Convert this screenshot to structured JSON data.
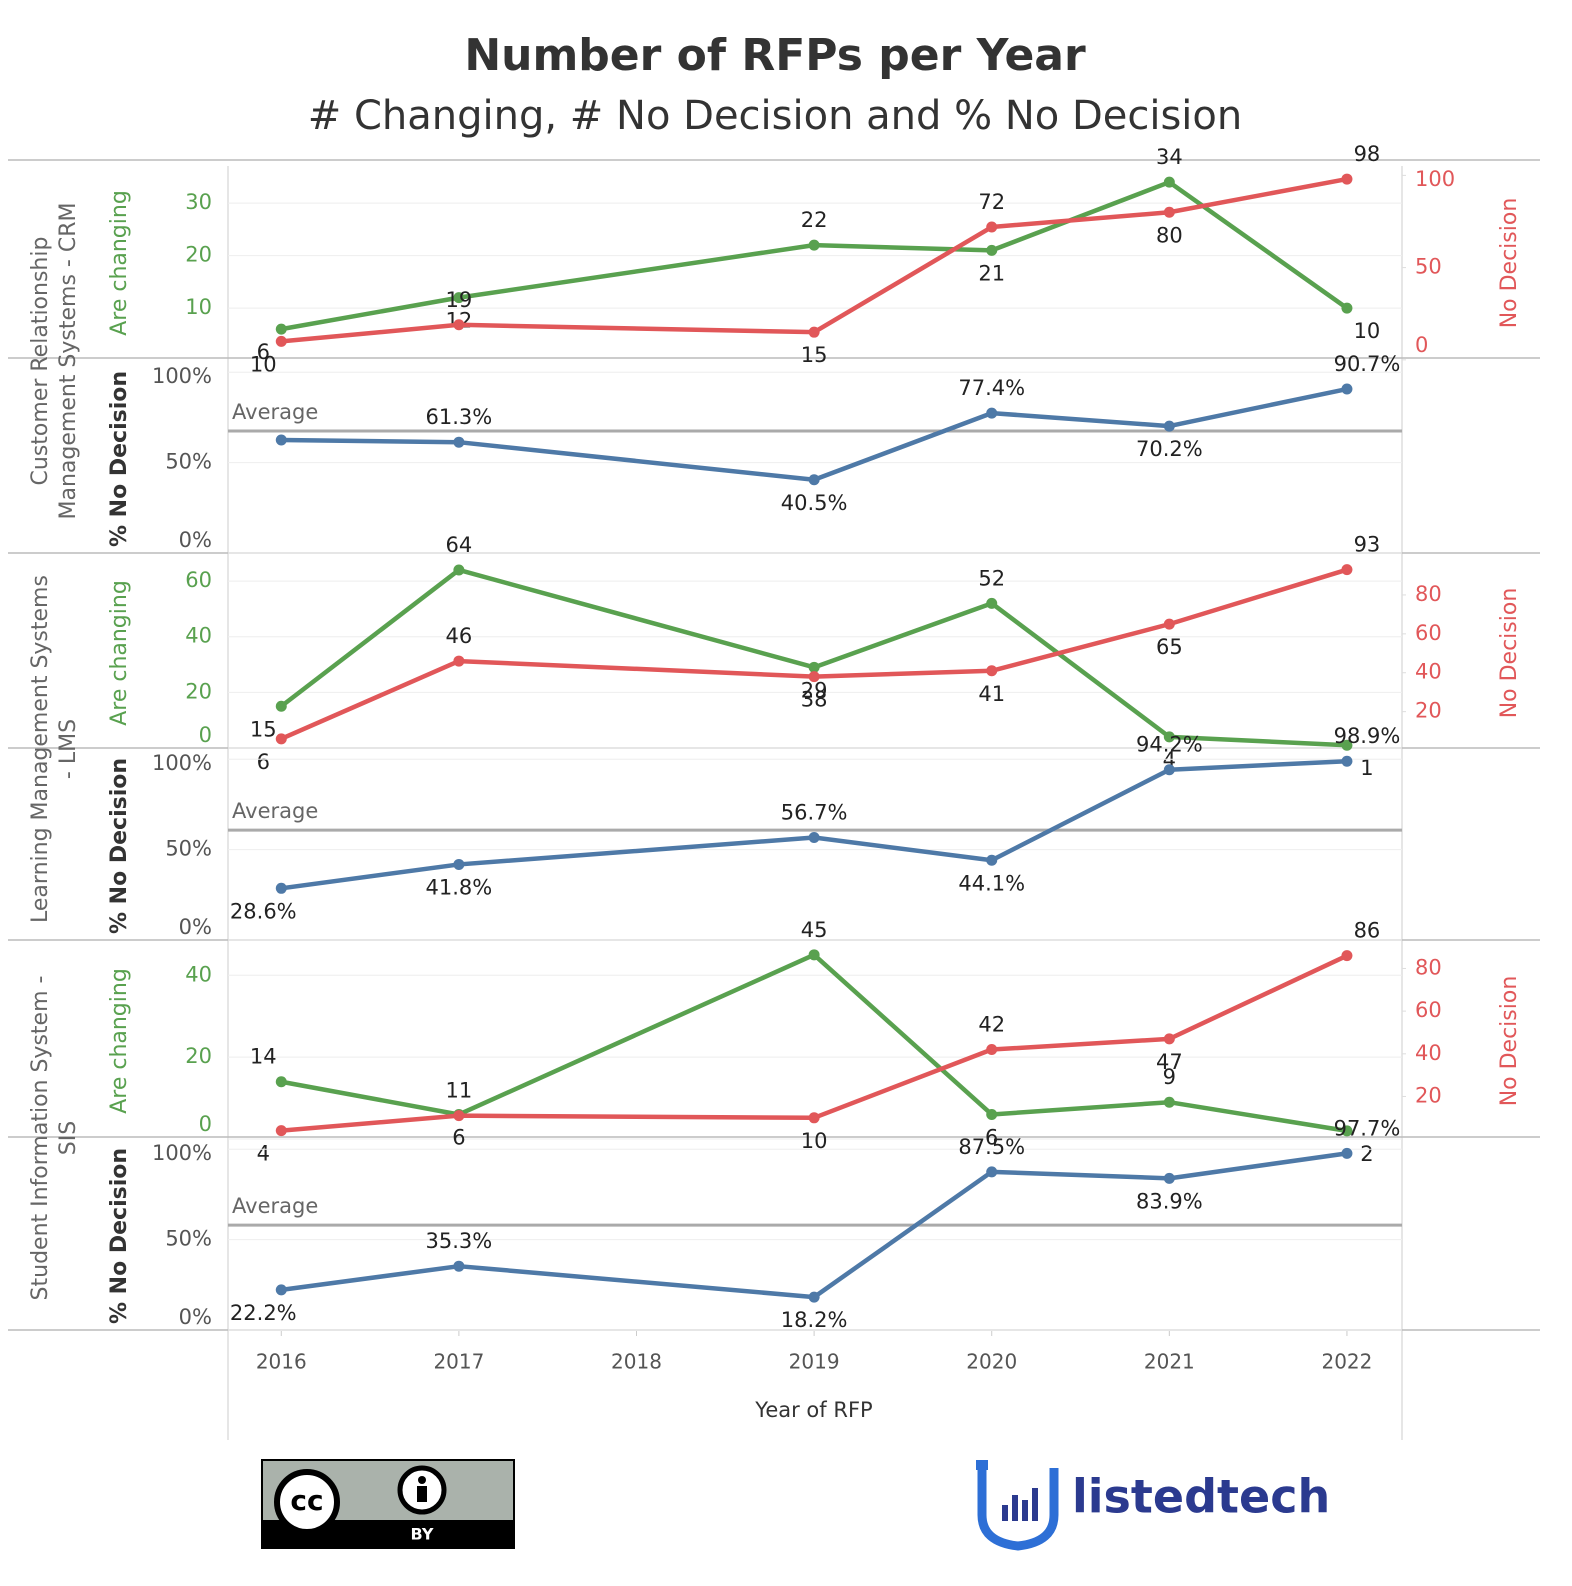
{
  "chart_data": {
    "type": "line",
    "title": "Number of RFPs per Year",
    "subtitle": "# Changing, # No Decision and % No Decision",
    "x_label": "Year of RFP",
    "x": [
      2016,
      2017,
      2019,
      2020,
      2021,
      2022
    ],
    "xlim": [
      2015.7,
      2022.31
    ],
    "xticks": [
      2016,
      2017,
      2018,
      2019,
      2020,
      2021,
      2022
    ],
    "panels": [
      {
        "group": "Customer Relationship Management Systems - CRM",
        "counts": {
          "ylim": [
            0.5,
            36.7
          ],
          "yticks": [
            10,
            20,
            30
          ],
          "y2lim": [
            1,
            104
          ],
          "y2ticks": [
            0,
            50,
            100
          ],
          "series": [
            {
              "name": "Are changing",
              "color": "#59a14f",
              "values": [
                6,
                12,
                22,
                21,
                34,
                10
              ]
            },
            {
              "name": "No Decision",
              "color": "#e15759",
              "axis": "y2",
              "values": [
                10,
                19,
                15,
                72,
                80,
                98
              ]
            }
          ]
        },
        "percent": {
          "ylim": [
            0,
            104
          ],
          "yticks": [
            {
              "value": 0,
              "label": "0%"
            },
            {
              "value": 50,
              "label": "50%"
            },
            {
              "value": 100,
              "label": "100%"
            }
          ],
          "series": [
            {
              "name": "% No Decision",
              "color": "#4e79a7",
              "values": [
                62.5,
                61.3,
                40.5,
                77.4,
                70.2,
                90.7
              ],
              "value_labels": [
                null,
                "61.3%",
                "40.5%",
                "77.4%",
                "70.2%",
                "90.7%"
              ]
            }
          ],
          "average": {
            "label": "Average",
            "value": 67.5
          }
        }
      },
      {
        "group": "Learning Management Systems - LMS",
        "counts": {
          "ylim": [
            0,
            68.3
          ],
          "yticks": [
            0,
            20,
            40,
            60
          ],
          "y2lim": [
            1.3,
            99
          ],
          "y2ticks": [
            20,
            40,
            60,
            80
          ],
          "series": [
            {
              "name": "Are changing",
              "color": "#59a14f",
              "values": [
                15,
                64,
                29,
                52,
                4,
                1
              ]
            },
            {
              "name": "No Decision",
              "color": "#e15759",
              "axis": "y2",
              "values": [
                6,
                46,
                38,
                41,
                65,
                93
              ]
            }
          ]
        },
        "percent": {
          "ylim": [
            0,
            104
          ],
          "yticks": [
            {
              "value": 0,
              "label": "0%"
            },
            {
              "value": 50,
              "label": "50%"
            },
            {
              "value": 100,
              "label": "100%"
            }
          ],
          "series": [
            {
              "name": "% No Decision",
              "color": "#4e79a7",
              "values": [
                28.6,
                41.8,
                56.7,
                44.1,
                94.2,
                98.9
              ],
              "value_labels": [
                "28.6%",
                "41.8%",
                "56.7%",
                "44.1%",
                "94.2%",
                "98.9%"
              ]
            }
          ],
          "average": {
            "label": "Average",
            "value": 60.8
          }
        }
      },
      {
        "group": "Student Information System - SIS",
        "counts": {
          "ylim": [
            0.5,
            47.4
          ],
          "yticks": [
            0,
            20,
            40
          ],
          "y2lim": [
            1,
            91
          ],
          "y2ticks": [
            20,
            40,
            60,
            80
          ],
          "series": [
            {
              "name": "Are changing",
              "color": "#59a14f",
              "values": [
                14,
                6,
                45,
                6,
                9,
                2
              ]
            },
            {
              "name": "No Decision",
              "color": "#e15759",
              "axis": "y2",
              "values": [
                4,
                11,
                10,
                42,
                47,
                86
              ]
            }
          ]
        },
        "percent": {
          "ylim": [
            0,
            104
          ],
          "yticks": [
            {
              "value": 0,
              "label": "0%"
            },
            {
              "value": 50,
              "label": "50%"
            },
            {
              "value": 100,
              "label": "100%"
            }
          ],
          "series": [
            {
              "name": "% No Decision",
              "color": "#4e79a7",
              "values": [
                22.2,
                35.3,
                18.2,
                87.5,
                83.9,
                97.7
              ],
              "value_labels": [
                "22.2%",
                "35.3%",
                "18.2%",
                "87.5%",
                "83.9%",
                "97.7%"
              ]
            }
          ],
          "average": {
            "label": "Average",
            "value": 58
          }
        }
      }
    ]
  },
  "footer": {
    "cc_mark": "cc",
    "license": "BY",
    "logo": "listedtech"
  }
}
